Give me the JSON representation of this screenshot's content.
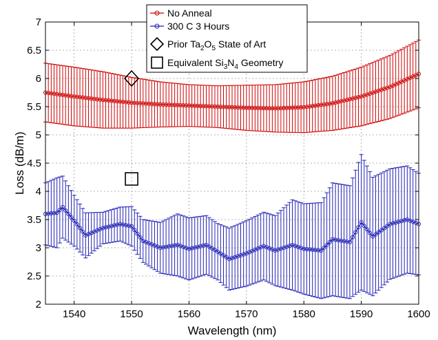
{
  "chart_data": {
    "type": "line",
    "xlabel": "Wavelength (nm)",
    "ylabel": "Loss (dB/m)",
    "xlim": [
      1535,
      1600
    ],
    "ylim": [
      2,
      7
    ],
    "xticks": [
      "1540",
      "1550",
      "1560",
      "1570",
      "1580",
      "1590",
      "1600"
    ],
    "yticks": [
      "2",
      "2.5",
      "3",
      "3.5",
      "4",
      "4.5",
      "5",
      "5.5",
      "6",
      "6.5",
      "7"
    ],
    "grid": true,
    "legend_position": "top-center",
    "series": [
      {
        "name": "No Anneal",
        "color": "#cc0000",
        "marker": "circle",
        "x": [
          1535,
          1540,
          1545,
          1550,
          1555,
          1560,
          1565,
          1570,
          1575,
          1580,
          1585,
          1590,
          1595,
          1600
        ],
        "y": [
          5.75,
          5.68,
          5.62,
          5.57,
          5.54,
          5.52,
          5.5,
          5.48,
          5.47,
          5.49,
          5.56,
          5.68,
          5.85,
          6.08
        ],
        "err": [
          0.52,
          0.52,
          0.5,
          0.45,
          0.4,
          0.37,
          0.37,
          0.4,
          0.42,
          0.45,
          0.48,
          0.52,
          0.56,
          0.6
        ]
      },
      {
        "name": "300 C 3 Hours",
        "color": "#1f1fb4",
        "marker": "circle",
        "x": [
          1535,
          1537,
          1538,
          1540,
          1542,
          1545,
          1548,
          1550,
          1552,
          1555,
          1558,
          1560,
          1563,
          1565,
          1567,
          1570,
          1573,
          1575,
          1578,
          1580,
          1583,
          1585,
          1588,
          1590,
          1592,
          1595,
          1598,
          1600
        ],
        "y": [
          3.6,
          3.62,
          3.72,
          3.48,
          3.22,
          3.35,
          3.42,
          3.38,
          3.12,
          3.0,
          3.05,
          2.98,
          3.05,
          2.93,
          2.8,
          2.9,
          3.03,
          2.95,
          3.05,
          2.98,
          2.95,
          3.15,
          3.1,
          3.45,
          3.2,
          3.42,
          3.5,
          3.42
        ],
        "err": [
          0.55,
          0.62,
          0.55,
          0.45,
          0.4,
          0.28,
          0.3,
          0.35,
          0.38,
          0.45,
          0.55,
          0.55,
          0.52,
          0.5,
          0.55,
          0.58,
          0.6,
          0.62,
          0.8,
          0.8,
          0.85,
          1.0,
          1.0,
          1.2,
          1.05,
          0.98,
          0.95,
          0.9
        ]
      }
    ],
    "points": [
      {
        "name": "Prior Ta2O5 State of Art",
        "marker": "diamond",
        "x": 1550,
        "y": 6.0
      },
      {
        "name": "Equivalent Si3N4 Geometry",
        "marker": "square",
        "x": 1550,
        "y": 4.22
      }
    ]
  },
  "legend": {
    "items": [
      {
        "label": "No Anneal",
        "color": "#cc0000",
        "marker": "line-circle"
      },
      {
        "label": "300 C 3 Hours",
        "color": "#1f1fb4",
        "marker": "line-circle"
      },
      {
        "label": "Prior Ta2O5 State of Art",
        "parts": [
          [
            "Prior Ta",
            false
          ],
          [
            "2",
            true
          ],
          [
            "O",
            false
          ],
          [
            "5",
            true
          ],
          [
            " State of Art",
            false
          ]
        ],
        "color": "#000000",
        "marker": "diamond"
      },
      {
        "label": "Equivalent Si3N4 Geometry",
        "parts": [
          [
            "Equivalent Si",
            false
          ],
          [
            "3",
            true
          ],
          [
            "N",
            false
          ],
          [
            "4",
            true
          ],
          [
            " Geometry",
            false
          ]
        ],
        "color": "#000000",
        "marker": "square"
      }
    ]
  }
}
